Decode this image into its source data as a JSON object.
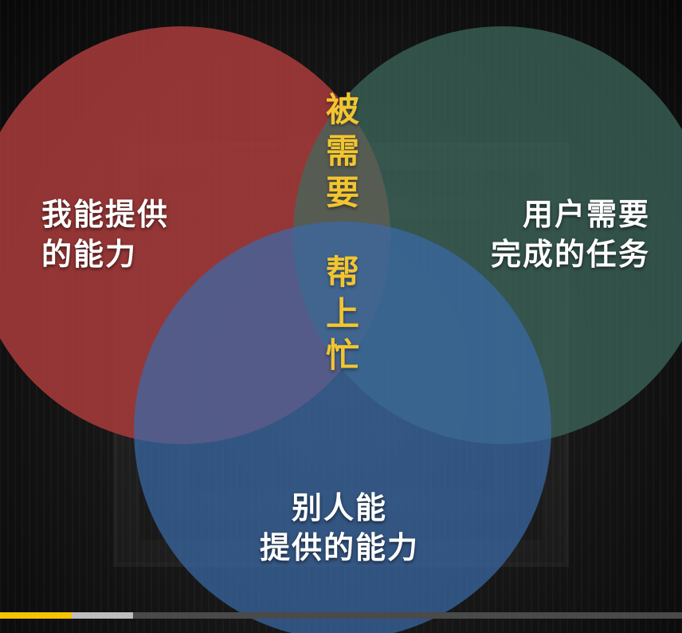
{
  "venn": {
    "circles": [
      {
        "id": "my-ability",
        "lines": [
          "我能提供",
          "的能力"
        ],
        "color": "#a63a3a"
      },
      {
        "id": "user-task",
        "lines": [
          "用户需要",
          "完成的任务"
        ],
        "color": "#3e6b5e"
      },
      {
        "id": "others-ability",
        "lines": [
          "别人能",
          "提供的能力"
        ],
        "color": "#3a6aa8"
      }
    ],
    "center_top": [
      "被",
      "需",
      "要"
    ],
    "center_bottom": [
      "帮",
      "上",
      "忙"
    ]
  },
  "colors": {
    "highlight_text": "#f2c531",
    "progress_fill": "#f5c400",
    "progress_buffer": "#bdbdbd",
    "progress_track": "#4a4a4a"
  },
  "progress": {
    "played_fraction": 0.105,
    "buffered_fraction": 0.195
  }
}
